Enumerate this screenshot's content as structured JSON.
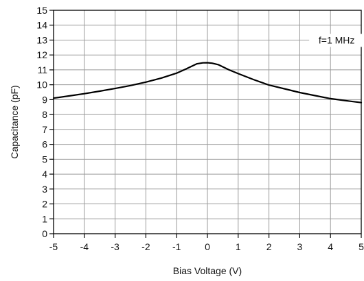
{
  "chart_data": {
    "type": "line",
    "xlabel": "Bias Voltage (V)",
    "ylabel": "Capacitance (pF)",
    "xlim": [
      -5,
      5
    ],
    "ylim": [
      0,
      15
    ],
    "x_ticks": [
      -5,
      -4,
      -3,
      -2,
      -1,
      0,
      1,
      2,
      3,
      4,
      5
    ],
    "y_ticks": [
      0,
      1,
      2,
      3,
      4,
      5,
      6,
      7,
      8,
      9,
      10,
      11,
      12,
      13,
      14,
      15
    ],
    "grid": true,
    "annotation": "f=1 MHz",
    "series": [
      {
        "x": [
          -5,
          -4.5,
          -4,
          -3.5,
          -3,
          -2.5,
          -2,
          -1.5,
          -1,
          -0.7,
          -0.35,
          -0.15,
          0,
          0.15,
          0.35,
          0.7,
          1,
          1.5,
          2,
          2.5,
          3,
          3.5,
          4,
          4.5,
          5
        ],
        "y": [
          9.1,
          9.25,
          9.4,
          9.57,
          9.75,
          9.95,
          10.18,
          10.45,
          10.78,
          11.05,
          11.4,
          11.47,
          11.48,
          11.45,
          11.35,
          11.0,
          10.75,
          10.35,
          9.98,
          9.73,
          9.48,
          9.27,
          9.07,
          8.93,
          8.8
        ]
      }
    ]
  }
}
